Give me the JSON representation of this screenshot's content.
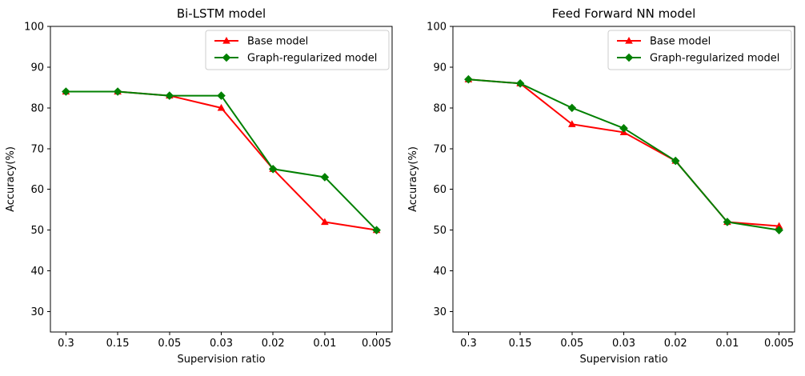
{
  "figure": {
    "background": "#ffffff",
    "spine_color": "#000000",
    "legend_border_color": "#cccccc",
    "legend_background": "#ffffff"
  },
  "chart_data": [
    {
      "id": "bi-lstm",
      "type": "line",
      "title": "Bi-LSTM model",
      "xlabel": "Supervision ratio",
      "ylabel": "Accuracy(%)",
      "categories": [
        "0.3",
        "0.15",
        "0.05",
        "0.03",
        "0.02",
        "0.01",
        "0.005"
      ],
      "yticks": [
        30,
        40,
        50,
        60,
        70,
        80,
        90,
        100
      ],
      "ylim": [
        25,
        100
      ],
      "grid": false,
      "legend_position": "upper right",
      "series": [
        {
          "name": "Base model",
          "color": "#ff0000",
          "marker": "triangle",
          "values": [
            84,
            84,
            83,
            80,
            65,
            52,
            50
          ]
        },
        {
          "name": "Graph-regularized model",
          "color": "#008000",
          "marker": "diamond",
          "values": [
            84,
            84,
            83,
            83,
            65,
            63,
            50
          ]
        }
      ]
    },
    {
      "id": "feed-forward-nn",
      "type": "line",
      "title": "Feed Forward NN model",
      "xlabel": "Supervision ratio",
      "ylabel": "Accuracy(%)",
      "categories": [
        "0.3",
        "0.15",
        "0.05",
        "0.03",
        "0.02",
        "0.01",
        "0.005"
      ],
      "yticks": [
        30,
        40,
        50,
        60,
        70,
        80,
        90,
        100
      ],
      "ylim": [
        25,
        100
      ],
      "grid": false,
      "legend_position": "upper right",
      "series": [
        {
          "name": "Base model",
          "color": "#ff0000",
          "marker": "triangle",
          "values": [
            87,
            86,
            76,
            74,
            67,
            52,
            51
          ]
        },
        {
          "name": "Graph-regularized model",
          "color": "#008000",
          "marker": "diamond",
          "values": [
            87,
            86,
            80,
            75,
            67,
            52,
            50
          ]
        }
      ]
    }
  ]
}
